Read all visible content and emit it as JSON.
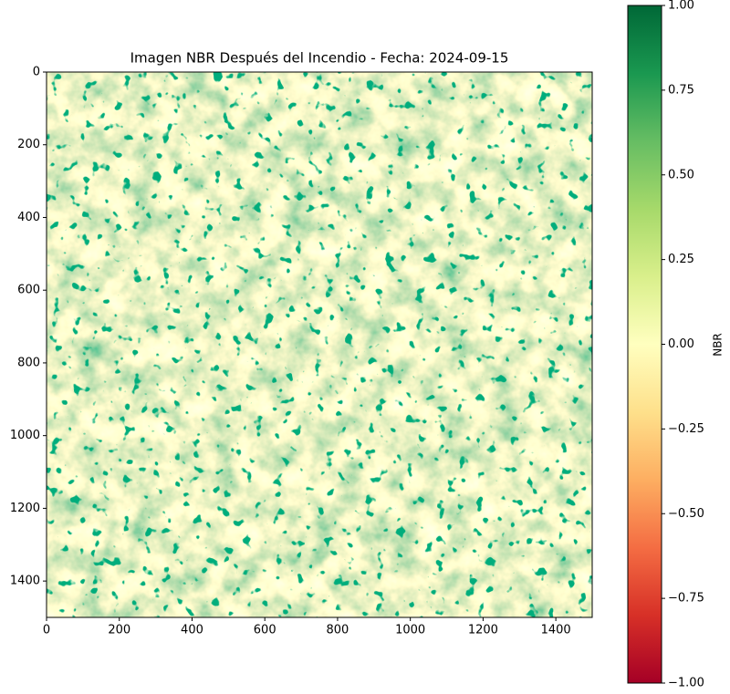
{
  "chart_data": {
    "type": "image",
    "title": "Imagen NBR Después del Incendio - Fecha: 2024-09-15",
    "colormap": "RdYlGn",
    "xlim": [
      0,
      1500
    ],
    "ylim": [
      1500,
      0
    ],
    "xticks": [
      0,
      200,
      400,
      600,
      800,
      1000,
      1200,
      1400
    ],
    "yticks": [
      0,
      200,
      400,
      600,
      800,
      1000,
      1200,
      1400
    ],
    "colorbar": {
      "label": "NBR",
      "clim": [
        -1,
        1
      ],
      "ticks": [
        {
          "value": 1,
          "label": "1.00"
        },
        {
          "value": 0.75,
          "label": "0.75"
        },
        {
          "value": 0.5,
          "label": "0.50"
        },
        {
          "value": 0.25,
          "label": "0.25"
        },
        {
          "value": 0,
          "label": "0.00"
        },
        {
          "value": -0.25,
          "label": "−0.25"
        },
        {
          "value": -0.5,
          "label": "−0.50"
        },
        {
          "value": -0.75,
          "label": "−0.75"
        },
        {
          "value": -1,
          "label": "−1.00"
        }
      ]
    }
  }
}
